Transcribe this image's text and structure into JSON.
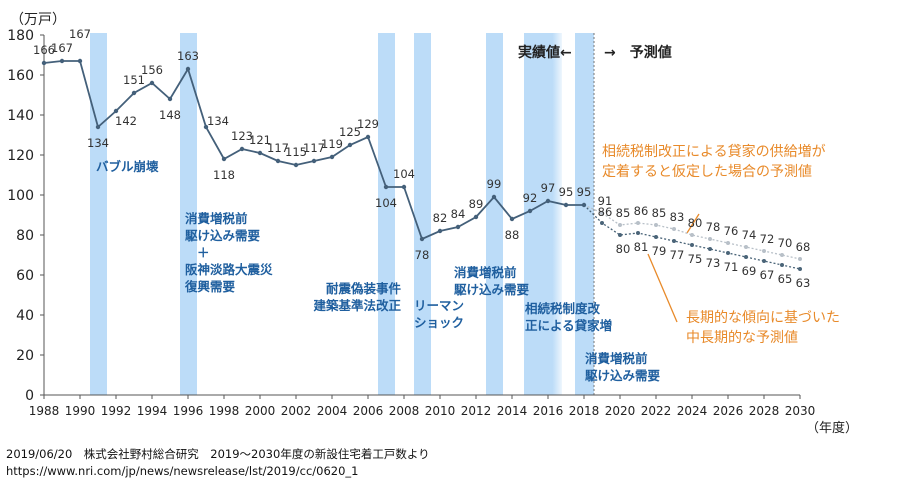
{
  "chart_data": {
    "type": "line",
    "ylabel": "（万戸）",
    "xlabel": "（年度）",
    "ylim": [
      0,
      180
    ],
    "yticks": [
      0,
      20,
      40,
      60,
      80,
      100,
      120,
      140,
      160,
      180
    ],
    "xticks": [
      1988,
      1990,
      1992,
      1994,
      1996,
      1998,
      2000,
      2002,
      2004,
      2006,
      2008,
      2010,
      2012,
      2014,
      2016,
      2018,
      2020,
      2022,
      2024,
      2026,
      2028,
      2030
    ],
    "grid": false,
    "actual": {
      "x": [
        1988,
        1989,
        1990,
        1991,
        1992,
        1993,
        1994,
        1995,
        1996,
        1997,
        1998,
        1999,
        2000,
        2001,
        2002,
        2003,
        2004,
        2005,
        2006,
        2007,
        2008,
        2009,
        2010,
        2011,
        2012,
        2013,
        2014,
        2015,
        2016,
        2017,
        2018
      ],
      "values": [
        166,
        167,
        167,
        134,
        142,
        151,
        156,
        148,
        163,
        134,
        118,
        123,
        121,
        117,
        115,
        117,
        119,
        125,
        129,
        104,
        104,
        78,
        82,
        84,
        89,
        99,
        88,
        92,
        97,
        95,
        95
      ]
    },
    "forecast_high": {
      "x": [
        2019,
        2020,
        2021,
        2022,
        2023,
        2024,
        2025,
        2026,
        2027,
        2028,
        2029,
        2030
      ],
      "values": [
        91,
        85,
        86,
        85,
        83,
        80,
        78,
        76,
        74,
        72,
        70,
        68
      ]
    },
    "forecast_low": {
      "x": [
        2019,
        2020,
        2021,
        2022,
        2023,
        2024,
        2025,
        2026,
        2027,
        2028,
        2029,
        2030
      ],
      "values": [
        86,
        80,
        81,
        79,
        77,
        75,
        73,
        71,
        69,
        67,
        65,
        63
      ]
    },
    "shaded_years": [
      1991,
      1996,
      2007,
      2009,
      2013,
      [
        2015,
        2016
      ],
      2018
    ],
    "colors": {
      "line": "#44607a",
      "forecast_high": "#b8c0c8",
      "forecast_low": "#4a6478",
      "band": "#bcdcf8",
      "annotation": "#1f5f9f",
      "forecast_note": "#e88a2a"
    },
    "annotations": {
      "bubble": "バブル崩壊",
      "tax1": [
        "消費増税前",
        "駆け込み需要",
        "＋",
        "阪神淡路大震災",
        "復興需要"
      ],
      "quake": [
        "耐震偽装事件",
        "建築基準法改正"
      ],
      "lehman": [
        "リーマン",
        "ショック"
      ],
      "tax2": [
        "消費増税前",
        "駆け込み需要"
      ],
      "inherit": [
        "相続税制度改",
        "正による貸家増"
      ],
      "tax3": [
        "消費増税前",
        "駆け込み需要"
      ],
      "actual_label": "実績値←",
      "forecast_label": "→　予測値",
      "high_note": [
        "相続税制改正による貸家の供給増が",
        "定着すると仮定した場合の予測値"
      ],
      "low_note": [
        "長期的な傾向に基づいた",
        "中長期的な予測値"
      ]
    }
  },
  "footer": {
    "source": "2019/06/20　株式会社野村総合研究　2019～2030年度の新設住宅着工戸数より",
    "url": "https://www.nri.com/jp/news/newsrelease/lst/2019/cc/0620_1"
  }
}
